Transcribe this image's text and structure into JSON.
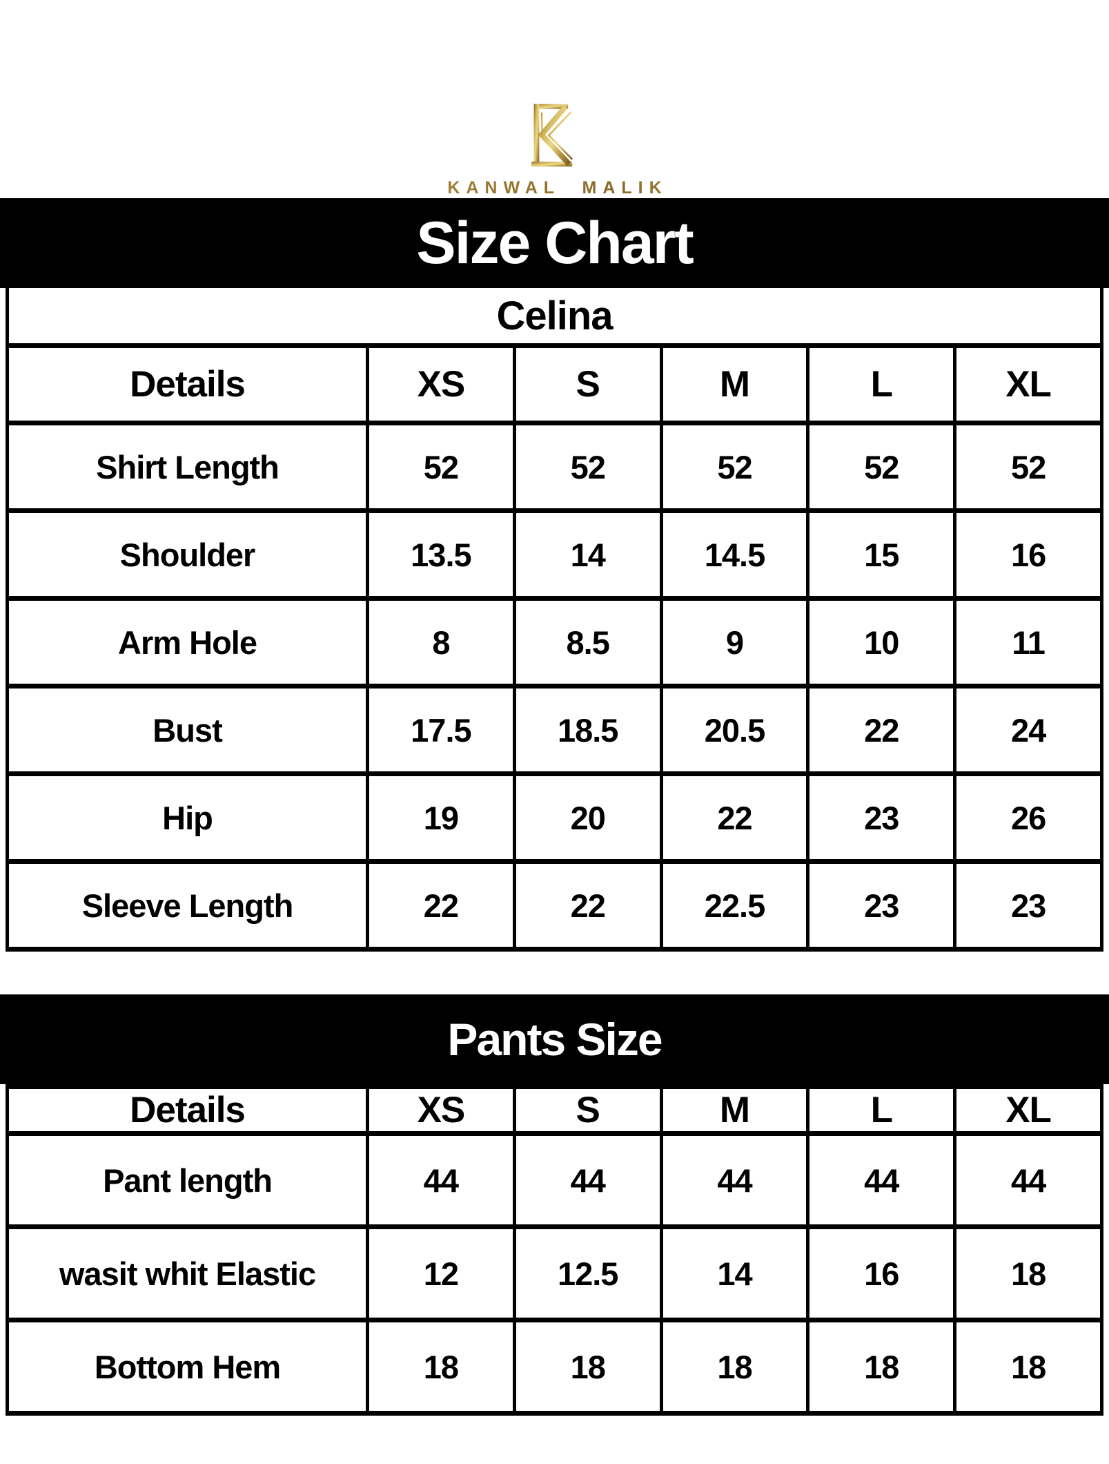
{
  "brand": {
    "monogram": "K",
    "name": "KANWAL MALIK"
  },
  "shirt_chart": {
    "banner": "Size Chart",
    "product": "Celina",
    "columns": [
      "Details",
      "XS",
      "S",
      "M",
      "L",
      "XL"
    ],
    "rows": [
      {
        "label": "Shirt Length",
        "values": [
          "52",
          "52",
          "52",
          "52",
          "52"
        ]
      },
      {
        "label": "Shoulder",
        "values": [
          "13.5",
          "14",
          "14.5",
          "15",
          "16"
        ]
      },
      {
        "label": "Arm Hole",
        "values": [
          "8",
          "8.5",
          "9",
          "10",
          "11"
        ]
      },
      {
        "label": "Bust",
        "values": [
          "17.5",
          "18.5",
          "20.5",
          "22",
          "24"
        ]
      },
      {
        "label": "Hip",
        "values": [
          "19",
          "20",
          "22",
          "23",
          "26"
        ]
      },
      {
        "label": "Sleeve Length",
        "values": [
          "22",
          "22",
          "22.5",
          "23",
          "23"
        ]
      }
    ]
  },
  "pants_chart": {
    "banner": "Pants Size",
    "columns": [
      "Details",
      "XS",
      "S",
      "M",
      "L",
      "XL"
    ],
    "rows": [
      {
        "label": "Pant length",
        "values": [
          "44",
          "44",
          "44",
          "44",
          "44"
        ]
      },
      {
        "label": "wasit whit Elastic",
        "values": [
          "12",
          "12.5",
          "14",
          "16",
          "18"
        ]
      },
      {
        "label": "Bottom Hem",
        "values": [
          "18",
          "18",
          "18",
          "18",
          "18"
        ]
      }
    ]
  },
  "colors": {
    "banner_bg": "#000000",
    "banner_text": "#ffffff",
    "table_border": "#000000",
    "page_bg": "#ffffff",
    "gold_dark": "#7d5e22",
    "gold_mid": "#b28d3c",
    "gold_light": "#ecd98c"
  }
}
